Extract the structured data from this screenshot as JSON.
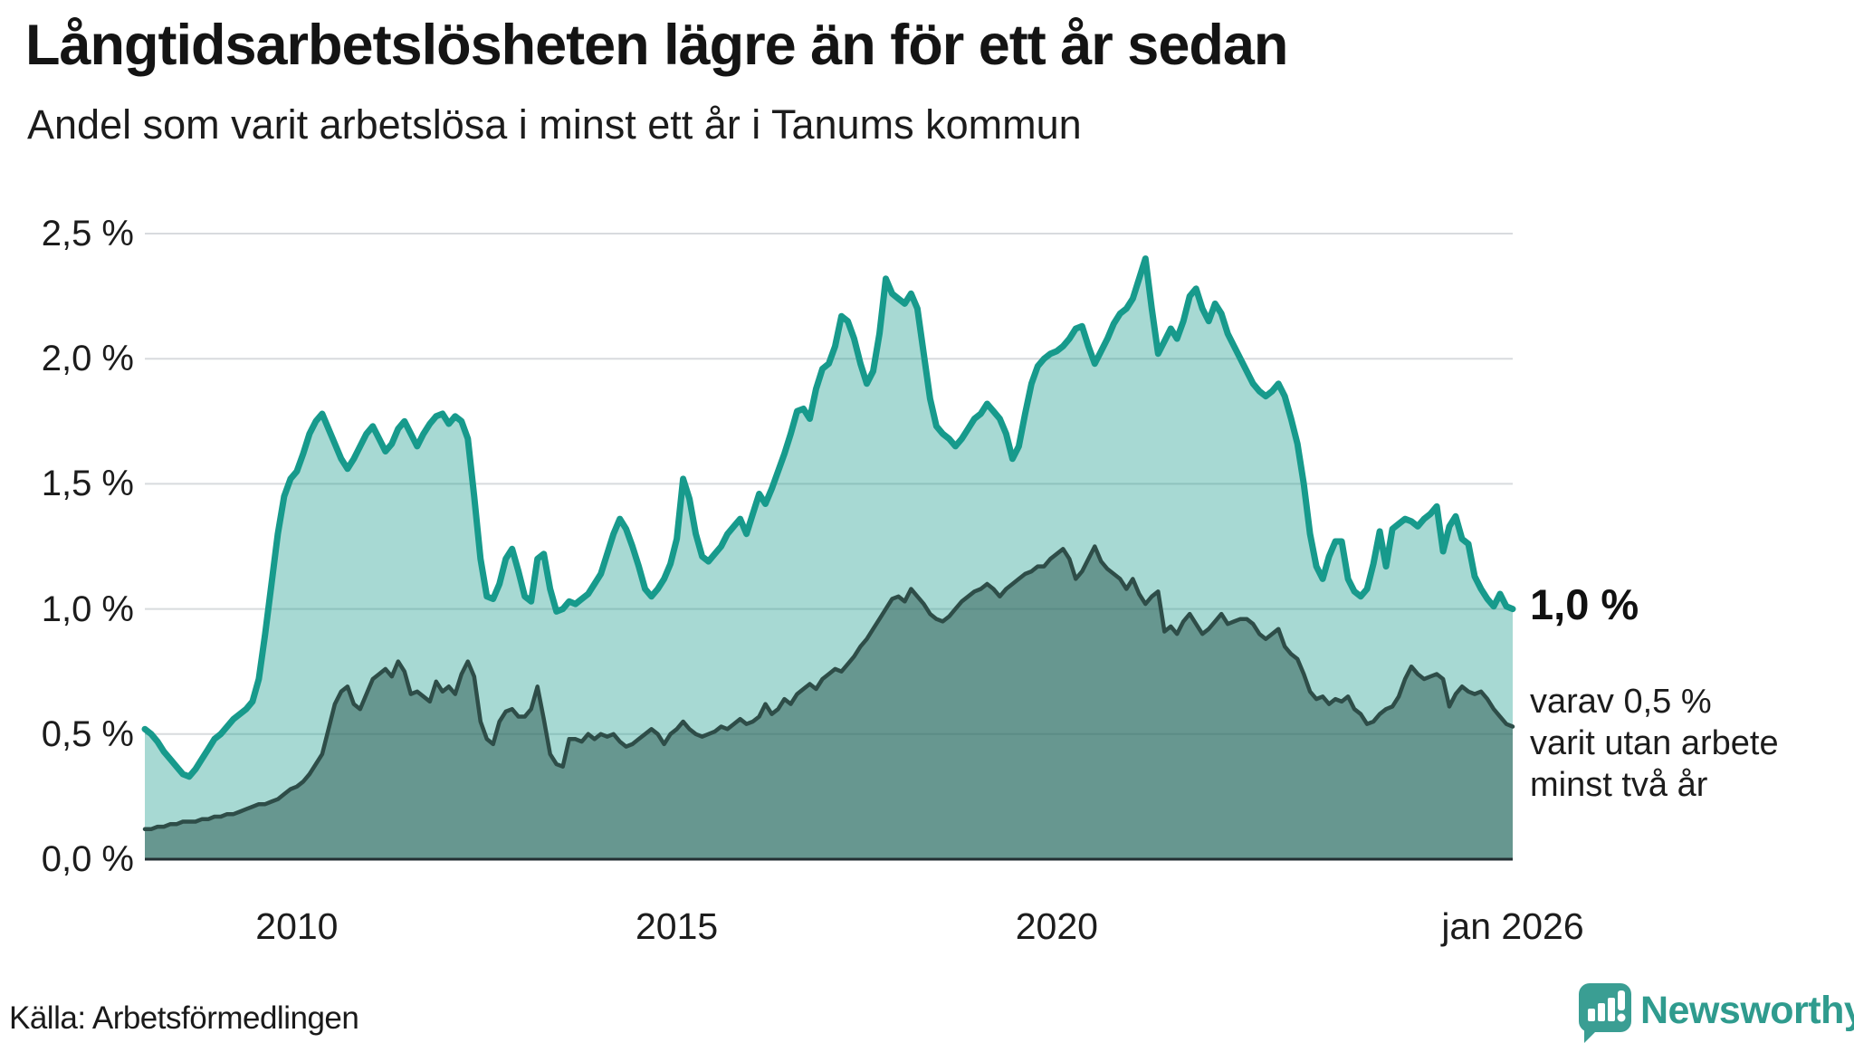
{
  "header": {
    "title": "Långtidsarbetslösheten lägre än för ett år sedan",
    "subtitle": "Andel som varit arbetslösa i minst ett år i Tanums kommun"
  },
  "annotations": {
    "end_value_label": "1,0 %",
    "note_lines": [
      "varav 0,5 %",
      "varit utan arbete",
      "minst två år"
    ]
  },
  "footer": {
    "source": "Källa: Arbetsförmedlingen",
    "brand": "Newsworthy"
  },
  "colors": {
    "accent_teal_line": "#179a8c",
    "light_area_fill": "rgba(23,154,140,0.38)",
    "dark_series_line": "#2e4d48",
    "dark_area_fill": "rgba(40,85,78,0.50)",
    "gridline": "#d8dbde",
    "baseline": "#232f33",
    "text": "#1a1a1a",
    "brand_teal": "#2f9b8e"
  },
  "chart_data": {
    "type": "area",
    "title": "Långtidsarbetslösheten lägre än för ett år sedan",
    "subtitle": "Andel som varit arbetslösa i minst ett år i Tanums kommun",
    "x_start": "2008-01",
    "x_end": "2026-01",
    "interval": "monthly",
    "ylim": [
      0,
      2.5
    ],
    "grid": true,
    "legend_position": "right-annotations",
    "yticks": [
      {
        "value": 2.5,
        "label": "2,5 %"
      },
      {
        "value": 2.0,
        "label": "2,0 %"
      },
      {
        "value": 1.5,
        "label": "1,5 %"
      },
      {
        "value": 1.0,
        "label": "1,0 %"
      },
      {
        "value": 0.5,
        "label": "0,5 %"
      },
      {
        "value": 0.0,
        "label": "0,0 %"
      }
    ],
    "xticks": [
      {
        "year": 2010,
        "label": "2010"
      },
      {
        "year": 2015,
        "label": "2015"
      },
      {
        "year": 2020,
        "label": "2020"
      },
      {
        "year": 2026,
        "label": "jan 2026"
      }
    ],
    "series": [
      {
        "name": "Andel som varit arbetslösa i minst ett år",
        "end_label": "1,0 %",
        "values": [
          0.52,
          0.5,
          0.47,
          0.43,
          0.4,
          0.37,
          0.34,
          0.33,
          0.36,
          0.4,
          0.44,
          0.48,
          0.5,
          0.53,
          0.56,
          0.58,
          0.6,
          0.63,
          0.72,
          0.9,
          1.1,
          1.3,
          1.45,
          1.52,
          1.55,
          1.62,
          1.7,
          1.75,
          1.78,
          1.72,
          1.66,
          1.6,
          1.56,
          1.6,
          1.65,
          1.7,
          1.73,
          1.68,
          1.63,
          1.66,
          1.72,
          1.75,
          1.7,
          1.65,
          1.7,
          1.74,
          1.77,
          1.78,
          1.74,
          1.77,
          1.75,
          1.68,
          1.45,
          1.2,
          1.05,
          1.04,
          1.1,
          1.2,
          1.24,
          1.15,
          1.05,
          1.03,
          1.2,
          1.22,
          1.08,
          0.99,
          1.0,
          1.03,
          1.02,
          1.04,
          1.06,
          1.1,
          1.14,
          1.22,
          1.3,
          1.36,
          1.32,
          1.25,
          1.17,
          1.08,
          1.05,
          1.08,
          1.12,
          1.18,
          1.28,
          1.52,
          1.44,
          1.3,
          1.21,
          1.19,
          1.22,
          1.25,
          1.3,
          1.33,
          1.36,
          1.3,
          1.38,
          1.46,
          1.42,
          1.48,
          1.55,
          1.62,
          1.7,
          1.79,
          1.8,
          1.76,
          1.88,
          1.96,
          1.98,
          2.05,
          2.17,
          2.15,
          2.08,
          1.98,
          1.9,
          1.95,
          2.1,
          2.32,
          2.26,
          2.24,
          2.22,
          2.26,
          2.2,
          2.02,
          1.84,
          1.73,
          1.7,
          1.68,
          1.65,
          1.68,
          1.72,
          1.76,
          1.78,
          1.82,
          1.79,
          1.76,
          1.7,
          1.6,
          1.65,
          1.78,
          1.9,
          1.97,
          2.0,
          2.02,
          2.03,
          2.05,
          2.08,
          2.12,
          2.13,
          2.05,
          1.98,
          2.03,
          2.08,
          2.14,
          2.18,
          2.2,
          2.24,
          2.32,
          2.4,
          2.2,
          2.02,
          2.07,
          2.12,
          2.08,
          2.15,
          2.25,
          2.28,
          2.2,
          2.15,
          2.22,
          2.18,
          2.1,
          2.05,
          2.0,
          1.95,
          1.9,
          1.87,
          1.85,
          1.87,
          1.9,
          1.85,
          1.76,
          1.66,
          1.5,
          1.3,
          1.17,
          1.12,
          1.21,
          1.27,
          1.27,
          1.12,
          1.07,
          1.05,
          1.08,
          1.18,
          1.31,
          1.17,
          1.32,
          1.34,
          1.36,
          1.35,
          1.33,
          1.36,
          1.38,
          1.41,
          1.23,
          1.33,
          1.37,
          1.28,
          1.26,
          1.13,
          1.08,
          1.04,
          1.01,
          1.06,
          1.01,
          1.0
        ]
      },
      {
        "name": "varav varit utan arbete minst två år",
        "end_label": "varav 0,5 % varit utan arbete minst två år",
        "values": [
          0.12,
          0.12,
          0.13,
          0.13,
          0.14,
          0.14,
          0.15,
          0.15,
          0.15,
          0.16,
          0.16,
          0.17,
          0.17,
          0.18,
          0.18,
          0.19,
          0.2,
          0.21,
          0.22,
          0.22,
          0.23,
          0.24,
          0.26,
          0.28,
          0.29,
          0.31,
          0.34,
          0.38,
          0.42,
          0.52,
          0.62,
          0.67,
          0.69,
          0.62,
          0.6,
          0.66,
          0.72,
          0.74,
          0.76,
          0.73,
          0.79,
          0.75,
          0.66,
          0.67,
          0.65,
          0.63,
          0.71,
          0.67,
          0.69,
          0.66,
          0.74,
          0.79,
          0.73,
          0.55,
          0.48,
          0.46,
          0.55,
          0.59,
          0.6,
          0.57,
          0.57,
          0.6,
          0.69,
          0.56,
          0.42,
          0.38,
          0.37,
          0.48,
          0.48,
          0.47,
          0.5,
          0.48,
          0.5,
          0.49,
          0.5,
          0.47,
          0.45,
          0.46,
          0.48,
          0.5,
          0.52,
          0.5,
          0.46,
          0.5,
          0.52,
          0.55,
          0.52,
          0.5,
          0.49,
          0.5,
          0.51,
          0.53,
          0.52,
          0.54,
          0.56,
          0.54,
          0.55,
          0.57,
          0.62,
          0.58,
          0.6,
          0.64,
          0.62,
          0.66,
          0.68,
          0.7,
          0.68,
          0.72,
          0.74,
          0.76,
          0.75,
          0.78,
          0.81,
          0.85,
          0.88,
          0.92,
          0.96,
          1.0,
          1.04,
          1.05,
          1.03,
          1.08,
          1.05,
          1.02,
          0.98,
          0.96,
          0.95,
          0.97,
          1.0,
          1.03,
          1.05,
          1.07,
          1.08,
          1.1,
          1.08,
          1.05,
          1.08,
          1.1,
          1.12,
          1.14,
          1.15,
          1.17,
          1.17,
          1.2,
          1.22,
          1.24,
          1.2,
          1.12,
          1.15,
          1.2,
          1.25,
          1.19,
          1.16,
          1.14,
          1.12,
          1.08,
          1.12,
          1.06,
          1.02,
          1.05,
          1.07,
          0.91,
          0.93,
          0.9,
          0.95,
          0.98,
          0.94,
          0.9,
          0.92,
          0.95,
          0.98,
          0.94,
          0.95,
          0.96,
          0.96,
          0.94,
          0.9,
          0.88,
          0.9,
          0.92,
          0.85,
          0.82,
          0.8,
          0.74,
          0.67,
          0.64,
          0.65,
          0.62,
          0.64,
          0.63,
          0.65,
          0.6,
          0.58,
          0.54,
          0.55,
          0.58,
          0.6,
          0.61,
          0.65,
          0.72,
          0.77,
          0.74,
          0.72,
          0.73,
          0.74,
          0.72,
          0.61,
          0.66,
          0.69,
          0.67,
          0.66,
          0.67,
          0.64,
          0.6,
          0.57,
          0.54,
          0.53
        ]
      }
    ]
  }
}
